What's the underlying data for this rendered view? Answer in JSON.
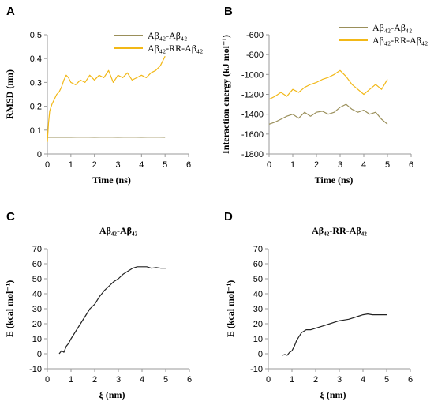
{
  "colors": {
    "olive": "#9a8f5a",
    "gold": "#f2b817",
    "black": "#222222"
  },
  "chart_data": [
    {
      "panel": "A",
      "type": "line",
      "title": "",
      "xlabel": "Time (ns)",
      "ylabel": "RMSD (nm)",
      "xlim": [
        0,
        6
      ],
      "ylim": [
        0,
        0.5
      ],
      "xticks": [
        "0",
        "1",
        "2",
        "3",
        "4",
        "5",
        "6"
      ],
      "yticks": [
        "0",
        "0.1",
        "0.2",
        "0.3",
        "0.4",
        "0.5"
      ],
      "legend_position": "top-right",
      "series": [
        {
          "name": "Aβ₄₂-Aβ₄₂",
          "color": "#9a8f5a",
          "x": [
            0,
            0.5,
            1,
            1.5,
            2,
            2.5,
            3,
            3.5,
            4,
            4.5,
            5
          ],
          "y": [
            0.07,
            0.07,
            0.07,
            0.071,
            0.07,
            0.071,
            0.07,
            0.071,
            0.07,
            0.071,
            0.07
          ]
        },
        {
          "name": "Aβ₄₂-RR-Aβ₄₂",
          "color": "#f2b817",
          "x": [
            0,
            0.05,
            0.1,
            0.2,
            0.3,
            0.4,
            0.5,
            0.6,
            0.7,
            0.8,
            0.9,
            1.0,
            1.2,
            1.4,
            1.6,
            1.8,
            2.0,
            2.2,
            2.4,
            2.6,
            2.8,
            3.0,
            3.2,
            3.4,
            3.6,
            3.8,
            4.0,
            4.2,
            4.4,
            4.6,
            4.8,
            5.0
          ],
          "y": [
            0.05,
            0.13,
            0.18,
            0.21,
            0.23,
            0.25,
            0.26,
            0.28,
            0.31,
            0.33,
            0.32,
            0.3,
            0.29,
            0.31,
            0.3,
            0.33,
            0.31,
            0.33,
            0.32,
            0.35,
            0.3,
            0.33,
            0.32,
            0.34,
            0.31,
            0.32,
            0.33,
            0.32,
            0.34,
            0.35,
            0.37,
            0.41
          ]
        }
      ]
    },
    {
      "panel": "B",
      "type": "line",
      "title": "",
      "xlabel": "Time (ns)",
      "ylabel": "Interaction  energy  (kJ mol⁻¹)",
      "xlim": [
        0,
        6
      ],
      "ylim": [
        -1800,
        -600
      ],
      "xticks": [
        "0",
        "1",
        "2",
        "3",
        "4",
        "5",
        "6"
      ],
      "yticks": [
        "-600",
        "-800",
        "-1000",
        "-1200",
        "-1400",
        "-1600",
        "-1800"
      ],
      "legend_position": "top-right",
      "series": [
        {
          "name": "Aβ₄₂-Aβ₄₂",
          "color": "#9a8f5a",
          "x": [
            0,
            0.25,
            0.5,
            0.75,
            1,
            1.25,
            1.5,
            1.75,
            2,
            2.25,
            2.5,
            2.75,
            3,
            3.25,
            3.5,
            3.75,
            4,
            4.25,
            4.5,
            4.75,
            5
          ],
          "y": [
            -1500,
            -1480,
            -1450,
            -1420,
            -1400,
            -1440,
            -1380,
            -1420,
            -1380,
            -1370,
            -1400,
            -1380,
            -1330,
            -1300,
            -1350,
            -1380,
            -1360,
            -1400,
            -1380,
            -1450,
            -1500
          ]
        },
        {
          "name": "Aβ₄₂-RR-Aβ₄₂",
          "color": "#f2b817",
          "x": [
            0,
            0.25,
            0.5,
            0.75,
            1,
            1.25,
            1.5,
            1.75,
            2,
            2.25,
            2.5,
            2.75,
            3,
            3.25,
            3.5,
            3.75,
            4,
            4.25,
            4.5,
            4.75,
            5
          ],
          "y": [
            -1250,
            -1220,
            -1180,
            -1220,
            -1150,
            -1180,
            -1130,
            -1100,
            -1080,
            -1050,
            -1030,
            -1000,
            -960,
            -1020,
            -1100,
            -1150,
            -1200,
            -1150,
            -1100,
            -1150,
            -1050
          ]
        }
      ]
    },
    {
      "panel": "C",
      "type": "line",
      "title": "Aβ₄₂-Aβ₄₂",
      "xlabel": "ξ (nm)",
      "ylabel": "E (kcal mol⁻¹)",
      "xlim": [
        0,
        6
      ],
      "ylim": [
        -10,
        70
      ],
      "xticks": [
        "0",
        "1",
        "2",
        "3",
        "4",
        "5",
        "6"
      ],
      "yticks": [
        "-10",
        "0",
        "10",
        "20",
        "30",
        "40",
        "50",
        "60",
        "70"
      ],
      "series": [
        {
          "name": "",
          "color": "#222222",
          "x": [
            0.5,
            0.6,
            0.7,
            0.8,
            0.9,
            1.0,
            1.2,
            1.4,
            1.6,
            1.8,
            2.0,
            2.2,
            2.4,
            2.6,
            2.8,
            3.0,
            3.2,
            3.4,
            3.6,
            3.8,
            4.0,
            4.2,
            4.4,
            4.6,
            4.8,
            5.0
          ],
          "y": [
            0,
            2,
            1,
            5,
            7,
            10,
            15,
            20,
            25,
            30,
            33,
            38,
            42,
            45,
            48,
            50,
            53,
            55,
            57,
            58,
            58,
            58,
            57,
            57.5,
            57,
            57
          ]
        }
      ]
    },
    {
      "panel": "D",
      "type": "line",
      "title": "Aβ₄₂-RR-Aβ₄₂",
      "xlabel": "ξ (nm)",
      "ylabel": "E  (kcal mol⁻¹)",
      "xlim": [
        0,
        6
      ],
      "ylim": [
        -10,
        70
      ],
      "xticks": [
        "0",
        "1",
        "2",
        "3",
        "4",
        "5",
        "6"
      ],
      "yticks": [
        "-10",
        "0",
        "10",
        "20",
        "30",
        "40",
        "50",
        "60",
        "70"
      ],
      "series": [
        {
          "name": "",
          "color": "#222222",
          "x": [
            0.6,
            0.7,
            0.8,
            0.9,
            1.0,
            1.1,
            1.2,
            1.4,
            1.6,
            1.8,
            2.0,
            2.2,
            2.4,
            2.6,
            2.8,
            3.0,
            3.2,
            3.4,
            3.6,
            3.8,
            4.0,
            4.2,
            4.4,
            4.6,
            4.8,
            5.0
          ],
          "y": [
            -1,
            -0.5,
            -1,
            1,
            2,
            5,
            9,
            14,
            16,
            16,
            17,
            18,
            19,
            20,
            21,
            22,
            22.5,
            23,
            24,
            25,
            26,
            26.5,
            26,
            26,
            26,
            26
          ]
        }
      ]
    }
  ]
}
